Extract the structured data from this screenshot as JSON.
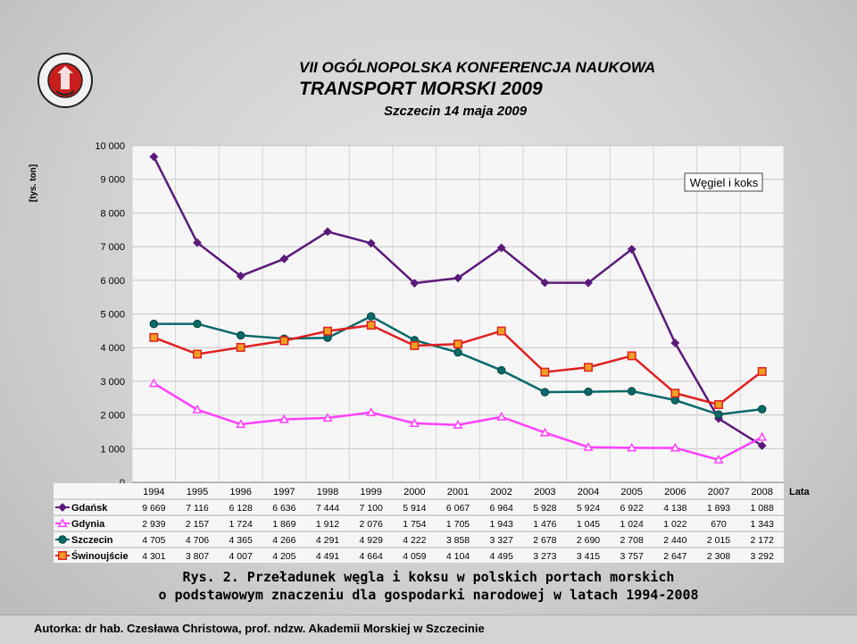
{
  "header": {
    "conference": "VII OGÓLNOPOLSKA KONFERENCJA NAUKOWA",
    "event": "TRANSPORT MORSKI 2009",
    "date_place": "Szczecin 14 maja 2009",
    "logo_text": "AKADEMIA MORSKA SZCZECIN"
  },
  "caption": {
    "line1": "Rys. 2. Przeładunek węgla i koksu w polskich portach morskich",
    "line2": "o podstawowym znaczeniu dla gospodarki narodowej w latach 1994-2008"
  },
  "footer": {
    "author": "Autorka: dr hab. Czesława Christowa, prof. ndzw. Akademii Morskiej w Szczecinie"
  },
  "chart_data": {
    "type": "line",
    "title": "Węgiel i koks",
    "ylabel": "[tys. ton]",
    "xlabel": "Lata",
    "ylim": [
      0,
      10000
    ],
    "yticks": [
      "0",
      "1 000",
      "2 000",
      "3 000",
      "4 000",
      "5 000",
      "6 000",
      "7 000",
      "8 000",
      "9 000",
      "10 000"
    ],
    "categories": [
      "1994",
      "1995",
      "1996",
      "1997",
      "1998",
      "1999",
      "2000",
      "2001",
      "2002",
      "2003",
      "2004",
      "2005",
      "2006",
      "2007",
      "2008"
    ],
    "grid": true,
    "series": [
      {
        "name": "Gdańsk",
        "color": "#5b1a7a",
        "marker": "diamond",
        "values": [
          9669,
          7116,
          6128,
          6636,
          7444,
          7100,
          5914,
          6067,
          6964,
          5928,
          5924,
          6922,
          4138,
          1893,
          1088
        ],
        "labels": [
          "9 669",
          "7 116",
          "6 128",
          "6 636",
          "7 444",
          "7 100",
          "5 914",
          "6 067",
          "6 964",
          "5 928",
          "5 924",
          "6 922",
          "4 138",
          "1 893",
          "1 088"
        ]
      },
      {
        "name": "Gdynia",
        "color": "#ff40ff",
        "marker": "triangle",
        "values": [
          2939,
          2157,
          1724,
          1869,
          1912,
          2076,
          1754,
          1705,
          1943,
          1476,
          1045,
          1024,
          1022,
          670,
          1343
        ],
        "labels": [
          "2 939",
          "2 157",
          "1 724",
          "1 869",
          "1 912",
          "2 076",
          "1 754",
          "1 705",
          "1 943",
          "1 476",
          "1 045",
          "1 024",
          "1 022",
          "670",
          "1 343"
        ]
      },
      {
        "name": "Szczecin",
        "color": "#0a6a6a",
        "marker": "circle",
        "values": [
          4705,
          4706,
          4365,
          4266,
          4291,
          4929,
          4222,
          3858,
          3327,
          2678,
          2690,
          2708,
          2440,
          2015,
          2172
        ],
        "labels": [
          "4 705",
          "4 706",
          "4 365",
          "4 266",
          "4 291",
          "4 929",
          "4 222",
          "3 858",
          "3 327",
          "2 678",
          "2 690",
          "2 708",
          "2 440",
          "2 015",
          "2 172"
        ]
      },
      {
        "name": "Świnoujście",
        "color": "#e02020",
        "marker": "square",
        "values": [
          4301,
          3807,
          4007,
          4205,
          4491,
          4664,
          4059,
          4104,
          4495,
          3273,
          3415,
          3757,
          2647,
          2308,
          3292
        ],
        "labels": [
          "4 301",
          "3 807",
          "4 007",
          "4 205",
          "4 491",
          "4 664",
          "4 059",
          "4 104",
          "4 495",
          "3 273",
          "3 415",
          "3 757",
          "2 647",
          "2 308",
          "3 292"
        ]
      }
    ]
  }
}
